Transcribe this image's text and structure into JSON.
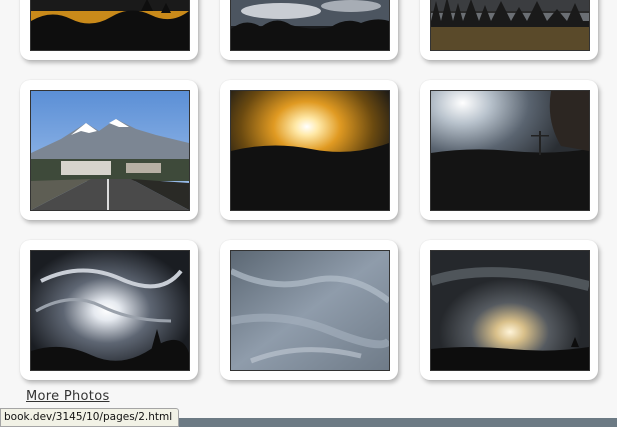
{
  "gallery": {
    "photos": [
      {
        "subject": "sunset over dark treeline"
      },
      {
        "subject": "silhouetted trees under cloudy sky"
      },
      {
        "subject": "lake with forest at dusk"
      },
      {
        "subject": "snow-capped mountain over town road"
      },
      {
        "subject": "orange sunset behind clouds"
      },
      {
        "subject": "sun glare over landscape"
      },
      {
        "subject": "sun through swirling clouds"
      },
      {
        "subject": "overcast cloudy sky"
      },
      {
        "subject": "sun rays through clouds over horizon"
      }
    ]
  },
  "more_link": {
    "label": "More Photos"
  },
  "status_bar": {
    "url": "book.dev/3145/10/pages/2.html"
  },
  "colors": {
    "page_bg": "#f7f7f7",
    "card_bg": "#ffffff",
    "link": "#333333"
  }
}
